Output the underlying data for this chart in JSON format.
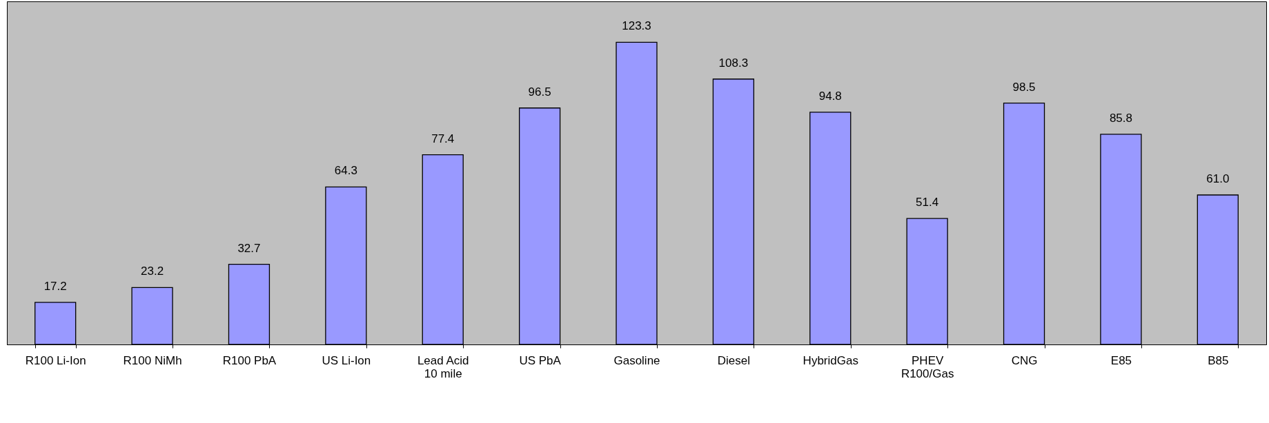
{
  "chart_data": {
    "type": "bar",
    "categories": [
      "R100 Li-Ion",
      "R100 NiMh",
      "R100 PbA",
      "US Li-Ion",
      "Lead Acid\n10 mile",
      "US PbA",
      "Gasoline",
      "Diesel",
      "HybridGas",
      "PHEV\nR100/Gas",
      "CNG",
      "E85",
      "B85"
    ],
    "values": [
      17.2,
      23.2,
      32.7,
      64.3,
      77.4,
      96.5,
      123.3,
      108.3,
      94.8,
      51.4,
      98.5,
      85.8,
      61.0
    ],
    "value_labels": [
      "17.2",
      "23.2",
      "32.7",
      "64.3",
      "77.4",
      "96.5",
      "123.3",
      "108.3",
      "94.8",
      "51.4",
      "98.5",
      "85.8",
      "61.0"
    ],
    "color": "#9999ff",
    "ylim": [
      0,
      140
    ],
    "tick_labels": "x",
    "grid": false
  }
}
